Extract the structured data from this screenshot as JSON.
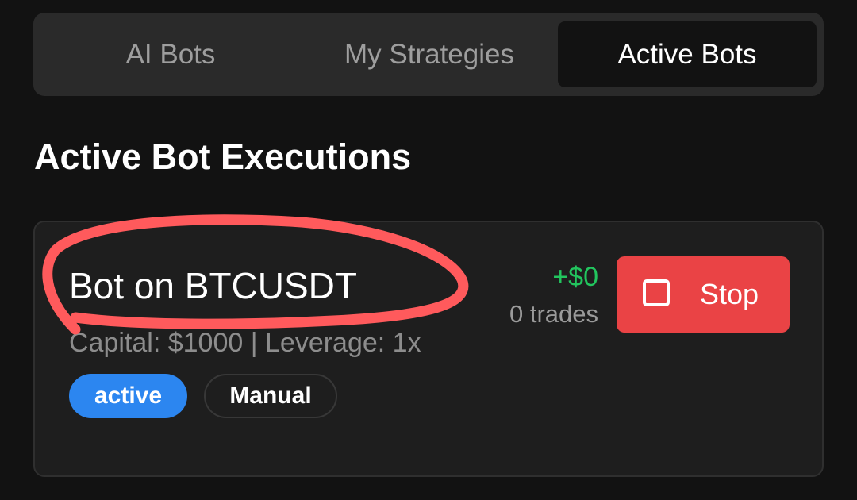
{
  "tabs": [
    {
      "label": "AI Bots",
      "selected": false
    },
    {
      "label": "My Strategies",
      "selected": false
    },
    {
      "label": "Active Bots",
      "selected": true
    }
  ],
  "section_title": "Active Bot Executions",
  "bot": {
    "name": "Bot on BTCUSDT",
    "details": "Capital: $1000 | Leverage: 1x",
    "pnl": "+$0",
    "trades": "0 trades",
    "status_badge": "active",
    "mode_badge": "Manual",
    "stop_label": "Stop",
    "stop_icon": "square-icon"
  },
  "annotation": {
    "type": "hand-drawn circle around bot name",
    "color": "#ff5a5c"
  },
  "colors": {
    "background": "#121212",
    "tab_bar": "#2a2a2a",
    "card": "#1e1e1e",
    "pnl_positive": "#22c55e",
    "status_active": "#2c86f0",
    "stop_button": "#ea4345"
  }
}
